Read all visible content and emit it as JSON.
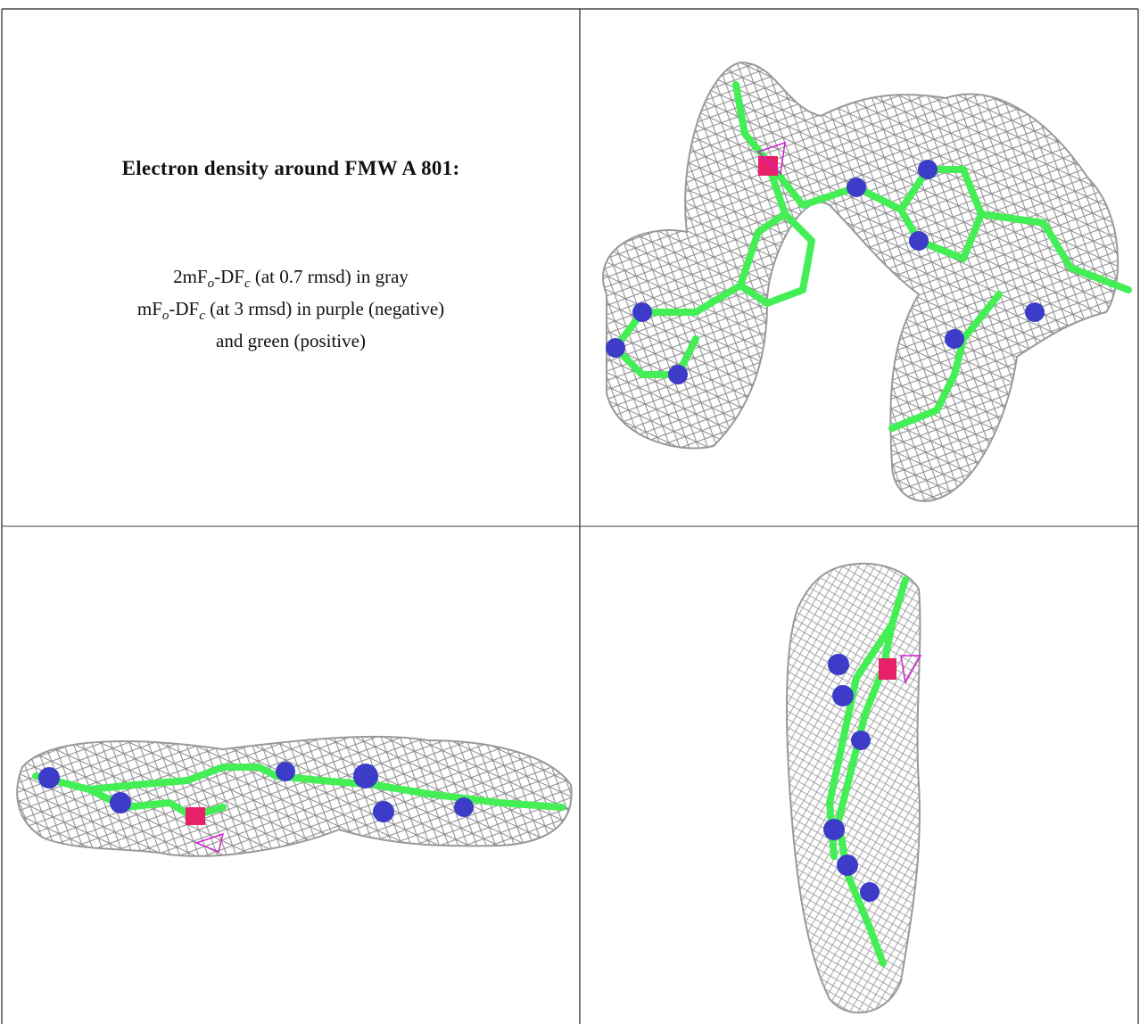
{
  "title": "Electron density around FMW A 801:",
  "legend": [
    [
      "2mF",
      "o",
      "-DF",
      "c",
      " (at 0.7 rmsd) in gray"
    ],
    [
      "mF",
      "o",
      "-DF",
      "c",
      " (at 3 rmsd) in purple (negative)"
    ],
    [
      "and green (positive)"
    ]
  ]
}
